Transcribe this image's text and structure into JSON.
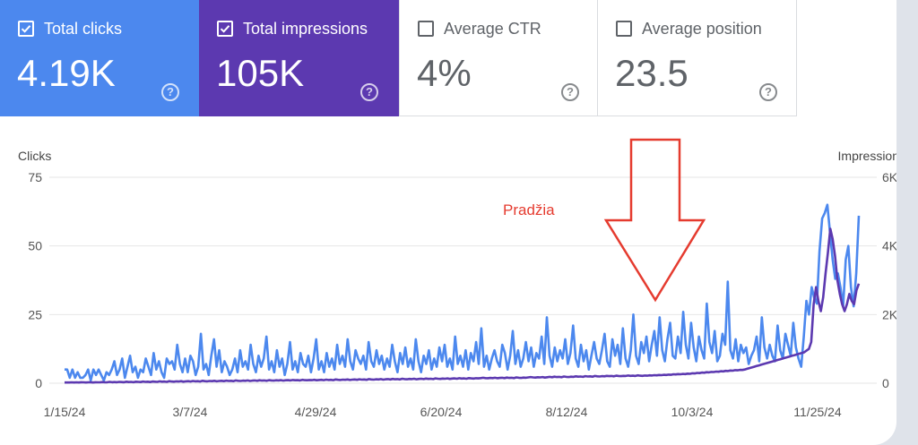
{
  "metrics": [
    {
      "label": "Total clicks",
      "value": "4.19K",
      "checked": true,
      "color": "#4c88ee"
    },
    {
      "label": "Total impressions",
      "value": "105K",
      "checked": true,
      "color": "#5c39b0"
    },
    {
      "label": "Average CTR",
      "value": "4%",
      "checked": false
    },
    {
      "label": "Average position",
      "value": "23.5",
      "checked": false
    }
  ],
  "help_glyph": "?",
  "chart_data": {
    "type": "line",
    "left_axis_label": "Clicks",
    "right_axis_label": "Impressions",
    "left_ylim": [
      0,
      75
    ],
    "right_ylim": [
      0,
      6000
    ],
    "left_ticks": [
      "75",
      "50",
      "25",
      "0"
    ],
    "right_ticks": [
      "6K",
      "4K",
      "2K",
      "0"
    ],
    "x_tick_labels": [
      "1/15/24",
      "3/7/24",
      "4/29/24",
      "6/20/24",
      "8/12/24",
      "10/3/24",
      "11/25/24"
    ],
    "x_range": [
      "2024-01-15",
      "2024-12-11"
    ],
    "grid": true,
    "series": [
      {
        "name": "Clicks",
        "axis": "left",
        "color": "#4c88ee",
        "values": [
          5,
          5,
          2,
          5,
          2,
          4,
          2,
          2,
          3,
          5,
          1,
          5,
          3,
          5,
          3,
          1,
          4,
          3,
          5,
          8,
          3,
          5,
          9,
          2,
          6,
          10,
          4,
          6,
          2,
          5,
          4,
          9,
          6,
          3,
          11,
          5,
          8,
          4,
          2,
          9,
          7,
          8,
          5,
          14,
          7,
          4,
          9,
          4,
          10,
          8,
          3,
          6,
          18,
          5,
          7,
          3,
          10,
          16,
          6,
          12,
          4,
          8,
          6,
          3,
          5,
          9,
          4,
          12,
          6,
          8,
          5,
          14,
          7,
          4,
          10,
          6,
          9,
          17,
          5,
          8,
          4,
          12,
          6,
          9,
          3,
          7,
          15,
          5,
          8,
          4,
          11,
          7,
          6,
          10,
          4,
          9,
          16,
          5,
          8,
          4,
          11,
          6,
          9,
          5,
          14,
          7,
          10,
          6,
          16,
          8,
          5,
          12,
          9,
          7,
          10,
          5,
          15,
          8,
          6,
          12,
          7,
          10,
          5,
          9,
          6,
          14,
          8,
          4,
          11,
          7,
          13,
          6,
          9,
          5,
          16,
          8,
          4,
          10,
          7,
          12,
          5,
          9,
          6,
          13,
          8,
          14,
          6,
          9,
          5,
          17,
          7,
          10,
          6,
          12,
          5,
          11,
          8,
          15,
          7,
          20,
          6,
          10,
          5,
          9,
          12,
          8,
          6,
          14,
          11,
          5,
          10,
          19,
          7,
          12,
          6,
          9,
          15,
          8,
          13,
          6,
          11,
          9,
          17,
          7,
          24,
          10,
          6,
          13,
          8,
          12,
          9,
          16,
          7,
          11,
          21,
          9,
          6,
          14,
          8,
          12,
          5,
          10,
          15,
          9,
          7,
          12,
          18,
          8,
          6,
          16,
          10,
          14,
          7,
          20,
          9,
          6,
          12,
          25,
          10,
          7,
          15,
          11,
          17,
          8,
          14,
          19,
          10,
          24,
          12,
          8,
          16,
          22,
          10,
          9,
          17,
          11,
          26,
          14,
          9,
          22,
          13,
          8,
          17,
          12,
          9,
          29,
          15,
          11,
          19,
          8,
          10,
          18,
          14,
          37,
          12,
          9,
          16,
          8,
          14,
          11,
          13,
          7,
          10,
          12,
          17,
          8,
          24,
          13,
          9,
          14,
          10,
          8,
          21,
          12,
          9,
          18,
          14,
          10,
          22,
          13,
          9,
          6,
          17,
          30,
          25,
          35,
          31,
          29,
          48,
          60,
          62,
          65,
          55,
          45,
          38,
          40,
          35,
          28,
          45,
          50,
          35,
          28,
          40,
          61
        ]
      },
      {
        "name": "Impressions",
        "axis": "right",
        "color": "#5c39b0",
        "values": [
          20,
          20,
          20,
          25,
          20,
          25,
          20,
          30,
          25,
          20,
          25,
          30,
          20,
          30,
          25,
          30,
          35,
          25,
          30,
          40,
          30,
          35,
          30,
          40,
          35,
          30,
          45,
          35,
          40,
          30,
          45,
          40,
          35,
          50,
          40,
          45,
          35,
          50,
          45,
          40,
          55,
          45,
          50,
          40,
          60,
          50,
          45,
          55,
          50,
          60,
          45,
          55,
          60,
          50,
          65,
          55,
          60,
          50,
          70,
          60,
          55,
          65,
          60,
          70,
          55,
          65,
          70,
          60,
          75,
          65,
          70,
          60,
          80,
          70,
          65,
          75,
          70,
          80,
          65,
          75,
          80,
          70,
          85,
          75,
          80,
          70,
          90,
          80,
          75,
          85,
          80,
          90,
          75,
          85,
          90,
          80,
          95,
          85,
          90,
          80,
          100,
          90,
          85,
          95,
          90,
          100,
          85,
          95,
          100,
          90,
          105,
          95,
          100,
          90,
          110,
          100,
          95,
          105,
          100,
          110,
          95,
          105,
          110,
          100,
          115,
          105,
          110,
          100,
          120,
          110,
          105,
          115,
          110,
          120,
          105,
          115,
          120,
          110,
          125,
          115,
          120,
          110,
          130,
          120,
          115,
          125,
          120,
          130,
          115,
          125,
          130,
          120,
          135,
          125,
          130,
          120,
          140,
          130,
          125,
          135,
          130,
          140,
          125,
          135,
          140,
          130,
          145,
          135,
          140,
          130,
          150,
          140,
          135,
          145,
          140,
          150,
          160,
          150,
          145,
          155,
          150,
          160,
          145,
          155,
          160,
          150,
          165,
          155,
          160,
          150,
          170,
          160,
          155,
          165,
          160,
          170,
          180,
          170,
          165,
          175,
          170,
          180,
          165,
          175,
          185,
          175,
          190,
          180,
          185,
          175,
          195,
          185,
          180,
          190,
          185,
          200,
          190,
          195,
          185,
          205,
          195,
          200,
          190,
          210,
          200,
          195,
          205,
          200,
          215,
          205,
          210,
          200,
          220,
          210,
          205,
          215,
          210,
          225,
          215,
          220,
          210,
          230,
          220,
          215,
          225,
          220,
          230,
          225,
          235,
          230,
          240,
          235,
          245,
          240,
          250,
          245,
          260,
          255,
          265,
          260,
          270,
          265,
          280,
          275,
          290,
          285,
          300,
          295,
          310,
          305,
          320,
          315,
          330,
          325,
          340,
          335,
          350,
          345,
          360,
          355,
          370,
          365,
          380,
          375,
          390,
          385,
          400,
          420,
          440,
          460,
          480,
          500,
          520,
          540,
          560,
          580,
          600,
          620,
          640,
          660,
          680,
          700,
          720,
          740,
          760,
          780,
          800,
          820,
          840,
          860,
          880,
          900,
          950,
          1000,
          1200,
          2300,
          2800,
          2400,
          2100,
          2500,
          3200,
          3800,
          4500,
          4200,
          3700,
          3000,
          2600,
          2300,
          2100,
          2300,
          2600,
          2400,
          2300,
          2700,
          2900
        ]
      }
    ],
    "annotation": {
      "text": "Pradžia",
      "arrow_color": "#e53b2f"
    }
  }
}
